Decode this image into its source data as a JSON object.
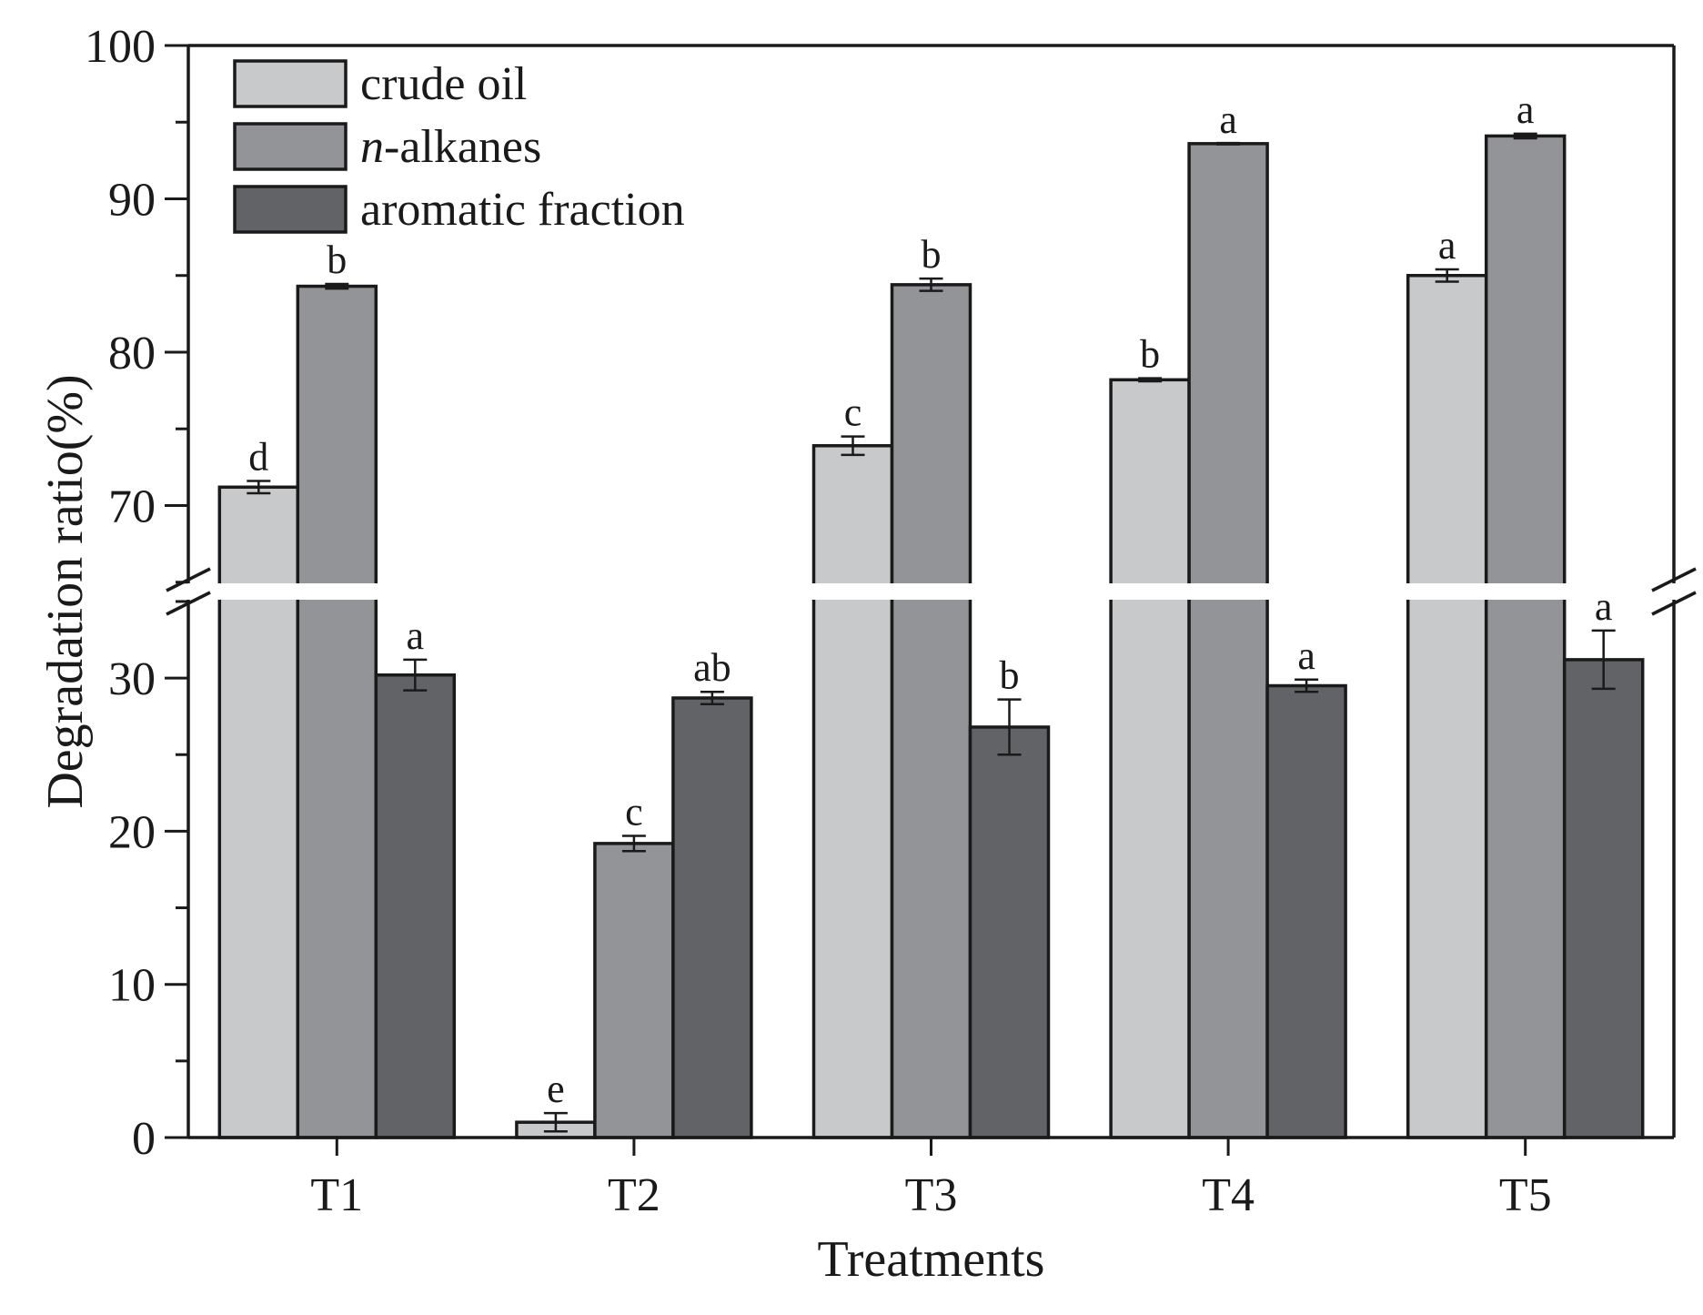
{
  "chart_data": {
    "type": "bar",
    "xlabel": "Treatments",
    "ylabel": "Degradation ratio(%)",
    "categories": [
      "T1",
      "T2",
      "T3",
      "T4",
      "T5"
    ],
    "y_axis_break": {
      "lower_segment": [
        0,
        35
      ],
      "upper_segment": [
        65,
        100
      ]
    },
    "y_ticks": [
      0,
      10,
      20,
      30,
      70,
      80,
      90,
      100
    ],
    "legend": {
      "placement": "top-left"
    },
    "series": [
      {
        "name": "crude oil",
        "name_prefix_italic": "",
        "name_rest": "crude oil",
        "color": "#c8c9cb",
        "values": [
          71.2,
          1.0,
          73.9,
          78.2,
          85.0
        ],
        "errors": [
          0.4,
          0.6,
          0.6,
          0.1,
          0.4
        ],
        "significance": [
          "d",
          "e",
          "c",
          "b",
          "a"
        ]
      },
      {
        "name": "n-alkanes",
        "name_prefix_italic": "n",
        "name_rest": "-alkanes",
        "color": "#939498",
        "values": [
          84.3,
          19.2,
          84.4,
          93.6,
          94.1
        ],
        "errors": [
          0.15,
          0.5,
          0.4,
          0.0,
          0.15
        ],
        "significance": [
          "b",
          "c",
          "b",
          "a",
          "a"
        ]
      },
      {
        "name": "aromatic fraction",
        "name_prefix_italic": "",
        "name_rest": "aromatic fraction",
        "color": "#626366",
        "values": [
          30.2,
          28.7,
          26.8,
          29.5,
          31.2
        ],
        "errors": [
          1.0,
          0.4,
          1.8,
          0.4,
          1.9
        ],
        "significance": [
          "a",
          "ab",
          "b",
          "a",
          "a"
        ]
      }
    ]
  }
}
